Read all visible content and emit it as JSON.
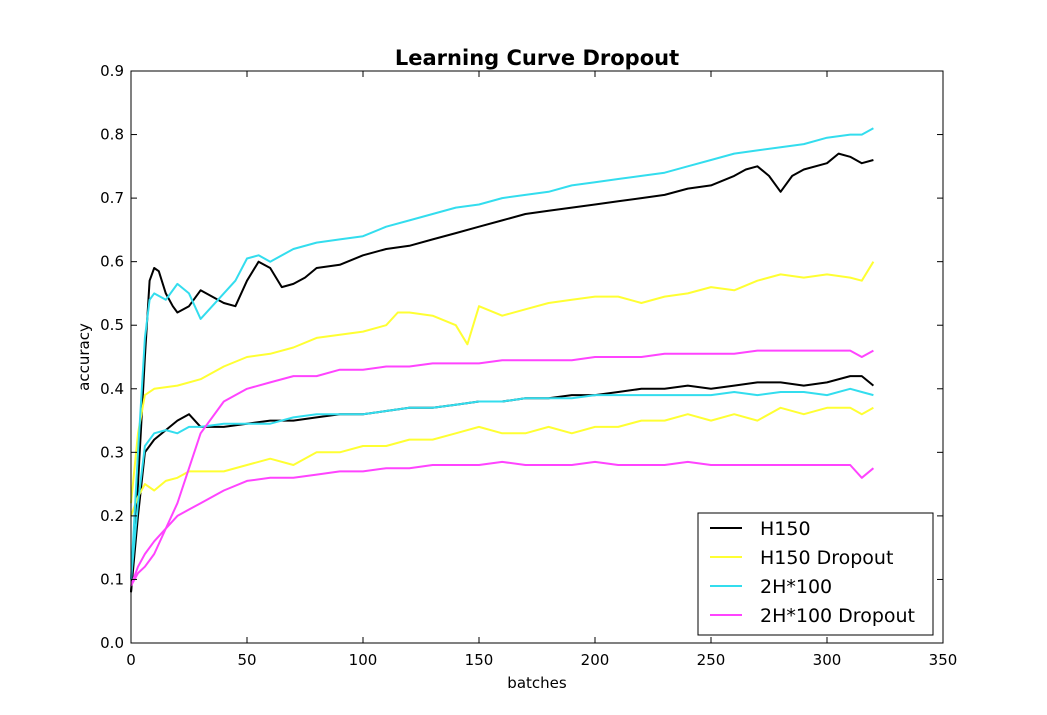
{
  "chart_data": {
    "type": "line",
    "title": "Learning Curve Dropout",
    "xlabel": "batches",
    "ylabel": "accuracy",
    "xlim": [
      0,
      350
    ],
    "ylim": [
      0.0,
      0.9
    ],
    "xticks": [
      "0",
      "50",
      "100",
      "150",
      "200",
      "250",
      "300",
      "350"
    ],
    "yticks": [
      "0.0",
      "0.1",
      "0.2",
      "0.3",
      "0.4",
      "0.5",
      "0.6",
      "0.7",
      "0.8",
      "0.9"
    ],
    "grid": false,
    "legend_position": "bottom-right",
    "series": [
      {
        "name": "H150",
        "color": "#000000",
        "x": [
          0,
          3,
          6,
          8,
          10,
          12,
          15,
          18,
          20,
          25,
          30,
          35,
          40,
          45,
          50,
          55,
          60,
          65,
          70,
          75,
          80,
          90,
          100,
          110,
          120,
          130,
          140,
          150,
          160,
          170,
          180,
          190,
          200,
          210,
          220,
          230,
          240,
          250,
          260,
          265,
          270,
          275,
          280,
          285,
          290,
          300,
          305,
          310,
          315,
          320
        ],
        "y": [
          0.08,
          0.25,
          0.45,
          0.57,
          0.59,
          0.585,
          0.55,
          0.53,
          0.52,
          0.53,
          0.555,
          0.545,
          0.535,
          0.53,
          0.57,
          0.6,
          0.59,
          0.56,
          0.565,
          0.575,
          0.59,
          0.595,
          0.61,
          0.62,
          0.625,
          0.635,
          0.645,
          0.655,
          0.665,
          0.675,
          0.68,
          0.685,
          0.69,
          0.695,
          0.7,
          0.705,
          0.715,
          0.72,
          0.735,
          0.745,
          0.75,
          0.735,
          0.71,
          0.735,
          0.745,
          0.755,
          0.77,
          0.765,
          0.755,
          0.76
        ]
      },
      {
        "name": "H150",
        "color": "#000000",
        "x": [
          0,
          3,
          6,
          10,
          15,
          20,
          25,
          30,
          40,
          50,
          60,
          70,
          80,
          90,
          100,
          110,
          120,
          130,
          140,
          150,
          160,
          170,
          180,
          190,
          200,
          210,
          220,
          230,
          240,
          250,
          260,
          270,
          280,
          290,
          300,
          310,
          315,
          320
        ],
        "y": [
          0.08,
          0.2,
          0.3,
          0.32,
          0.335,
          0.35,
          0.36,
          0.34,
          0.34,
          0.345,
          0.35,
          0.35,
          0.355,
          0.36,
          0.36,
          0.365,
          0.37,
          0.37,
          0.375,
          0.38,
          0.38,
          0.385,
          0.385,
          0.39,
          0.39,
          0.395,
          0.4,
          0.4,
          0.405,
          0.4,
          0.405,
          0.41,
          0.41,
          0.405,
          0.41,
          0.42,
          0.42,
          0.405
        ]
      },
      {
        "name": "H150 Dropout",
        "color": "#ffff33",
        "x": [
          0,
          3,
          6,
          10,
          20,
          30,
          40,
          50,
          60,
          70,
          80,
          90,
          100,
          110,
          115,
          120,
          130,
          140,
          145,
          150,
          160,
          170,
          180,
          190,
          200,
          210,
          220,
          230,
          240,
          250,
          260,
          270,
          280,
          290,
          300,
          310,
          315,
          320
        ],
        "y": [
          0.22,
          0.33,
          0.39,
          0.4,
          0.405,
          0.415,
          0.435,
          0.45,
          0.455,
          0.465,
          0.48,
          0.485,
          0.49,
          0.5,
          0.52,
          0.52,
          0.515,
          0.5,
          0.47,
          0.53,
          0.515,
          0.525,
          0.535,
          0.54,
          0.545,
          0.545,
          0.535,
          0.545,
          0.55,
          0.56,
          0.555,
          0.57,
          0.58,
          0.575,
          0.58,
          0.575,
          0.57,
          0.6
        ]
      },
      {
        "name": "H150 Dropout",
        "color": "#ffff33",
        "x": [
          0,
          3,
          6,
          10,
          15,
          20,
          25,
          30,
          40,
          50,
          60,
          70,
          80,
          90,
          100,
          110,
          120,
          130,
          140,
          150,
          160,
          170,
          180,
          190,
          200,
          210,
          220,
          230,
          240,
          250,
          260,
          270,
          280,
          290,
          300,
          310,
          315,
          320
        ],
        "y": [
          0.2,
          0.23,
          0.25,
          0.24,
          0.255,
          0.26,
          0.27,
          0.27,
          0.27,
          0.28,
          0.29,
          0.28,
          0.3,
          0.3,
          0.31,
          0.31,
          0.32,
          0.32,
          0.33,
          0.34,
          0.33,
          0.33,
          0.34,
          0.33,
          0.34,
          0.34,
          0.35,
          0.35,
          0.36,
          0.35,
          0.36,
          0.35,
          0.37,
          0.36,
          0.37,
          0.37,
          0.36,
          0.37
        ]
      },
      {
        "name": "2H*100",
        "color": "#33ddee",
        "x": [
          0,
          3,
          6,
          8,
          10,
          15,
          20,
          25,
          30,
          35,
          40,
          45,
          50,
          55,
          60,
          70,
          80,
          90,
          100,
          110,
          120,
          130,
          140,
          150,
          160,
          170,
          180,
          190,
          200,
          210,
          220,
          230,
          240,
          250,
          260,
          270,
          280,
          290,
          300,
          310,
          315,
          320
        ],
        "y": [
          0.1,
          0.3,
          0.48,
          0.54,
          0.55,
          0.54,
          0.565,
          0.55,
          0.51,
          0.53,
          0.55,
          0.57,
          0.605,
          0.61,
          0.6,
          0.62,
          0.63,
          0.635,
          0.64,
          0.655,
          0.665,
          0.675,
          0.685,
          0.69,
          0.7,
          0.705,
          0.71,
          0.72,
          0.725,
          0.73,
          0.735,
          0.74,
          0.75,
          0.76,
          0.77,
          0.775,
          0.78,
          0.785,
          0.795,
          0.8,
          0.8,
          0.81
        ]
      },
      {
        "name": "2H*100",
        "color": "#33ddee",
        "x": [
          0,
          3,
          6,
          10,
          15,
          20,
          25,
          30,
          40,
          50,
          60,
          70,
          80,
          90,
          100,
          110,
          120,
          130,
          140,
          150,
          160,
          170,
          180,
          190,
          200,
          210,
          220,
          230,
          240,
          250,
          260,
          270,
          280,
          290,
          300,
          310,
          315,
          320
        ],
        "y": [
          0.1,
          0.22,
          0.31,
          0.33,
          0.335,
          0.33,
          0.34,
          0.34,
          0.345,
          0.345,
          0.345,
          0.355,
          0.36,
          0.36,
          0.36,
          0.365,
          0.37,
          0.37,
          0.375,
          0.38,
          0.38,
          0.385,
          0.385,
          0.385,
          0.39,
          0.39,
          0.39,
          0.39,
          0.39,
          0.39,
          0.395,
          0.39,
          0.395,
          0.395,
          0.39,
          0.4,
          0.395,
          0.39
        ]
      },
      {
        "name": "2H*100 Dropout",
        "color": "#ff44ff",
        "x": [
          0,
          3,
          6,
          10,
          20,
          30,
          40,
          50,
          60,
          70,
          80,
          90,
          100,
          110,
          120,
          130,
          140,
          150,
          160,
          170,
          180,
          190,
          200,
          210,
          220,
          230,
          240,
          250,
          260,
          270,
          280,
          290,
          300,
          310,
          315,
          320
        ],
        "y": [
          0.09,
          0.11,
          0.12,
          0.14,
          0.22,
          0.33,
          0.38,
          0.4,
          0.41,
          0.42,
          0.42,
          0.43,
          0.43,
          0.435,
          0.435,
          0.44,
          0.44,
          0.44,
          0.445,
          0.445,
          0.445,
          0.445,
          0.45,
          0.45,
          0.45,
          0.455,
          0.455,
          0.455,
          0.455,
          0.46,
          0.46,
          0.46,
          0.46,
          0.46,
          0.45,
          0.46
        ]
      },
      {
        "name": "2H*100 Dropout",
        "color": "#ff44ff",
        "x": [
          0,
          3,
          6,
          10,
          15,
          20,
          25,
          30,
          40,
          50,
          60,
          70,
          80,
          90,
          100,
          110,
          120,
          130,
          140,
          150,
          160,
          170,
          180,
          190,
          200,
          210,
          220,
          230,
          240,
          250,
          260,
          270,
          280,
          290,
          300,
          310,
          315,
          320
        ],
        "y": [
          0.09,
          0.12,
          0.14,
          0.16,
          0.18,
          0.2,
          0.21,
          0.22,
          0.24,
          0.255,
          0.26,
          0.26,
          0.265,
          0.27,
          0.27,
          0.275,
          0.275,
          0.28,
          0.28,
          0.28,
          0.285,
          0.28,
          0.28,
          0.28,
          0.285,
          0.28,
          0.28,
          0.28,
          0.285,
          0.28,
          0.28,
          0.28,
          0.28,
          0.28,
          0.28,
          0.28,
          0.26,
          0.275
        ]
      }
    ],
    "legend": [
      {
        "label": "H150",
        "color": "#000000"
      },
      {
        "label": "H150 Dropout",
        "color": "#ffff33"
      },
      {
        "label": "2H*100",
        "color": "#33ddee"
      },
      {
        "label": "2H*100 Dropout",
        "color": "#ff44ff"
      }
    ]
  }
}
